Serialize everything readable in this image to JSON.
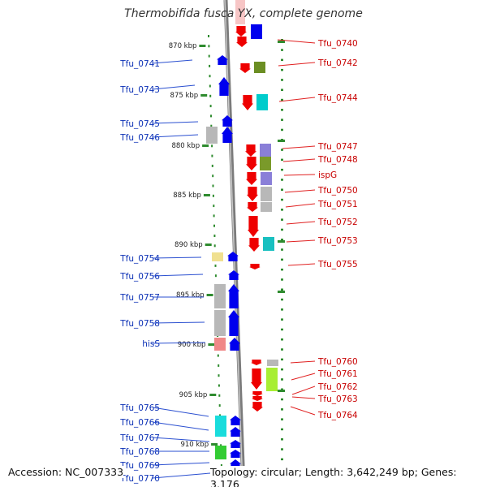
{
  "title": "Thermobifida fusca YX, complete genome",
  "accession": "Accession: NC_007333",
  "topology": "Topology: circular; Length: 3,642,249 bp; Genes: 3,176",
  "colors": {
    "forward_arrow": "#0000ee",
    "reverse_arrow": "#ee0000",
    "left_label": "#0a2fb5",
    "right_label": "#c80000",
    "ruler": "#2e8b2e",
    "backbone": "#8c8c8c"
  },
  "ruler_ticks": [
    "870 kbp",
    "875 kbp",
    "880 kbp",
    "885 kbp",
    "890 kbp",
    "895 kbp",
    "900 kbp",
    "905 kbp",
    "910 kbp"
  ],
  "left_genes": [
    "Tfu_0741",
    "Tfu_0743",
    "Tfu_0745",
    "Tfu_0746",
    "Tfu_0754",
    "Tfu_0756",
    "Tfu_0757",
    "Tfu_0758",
    "hisS",
    "Tfu_0765",
    "Tfu_0766",
    "Tfu_0767",
    "Tfu_0768",
    "Tfu_0769",
    "Tfu_0770"
  ],
  "right_genes": [
    "Tfu_0740",
    "Tfu_0742",
    "Tfu_0744",
    "Tfu_0747",
    "Tfu_0748",
    "ispG",
    "Tfu_0750",
    "Tfu_0751",
    "Tfu_0752",
    "Tfu_0753",
    "Tfu_0755",
    "Tfu_0760",
    "Tfu_0761",
    "Tfu_0762",
    "Tfu_0763",
    "Tfu_0764"
  ]
}
